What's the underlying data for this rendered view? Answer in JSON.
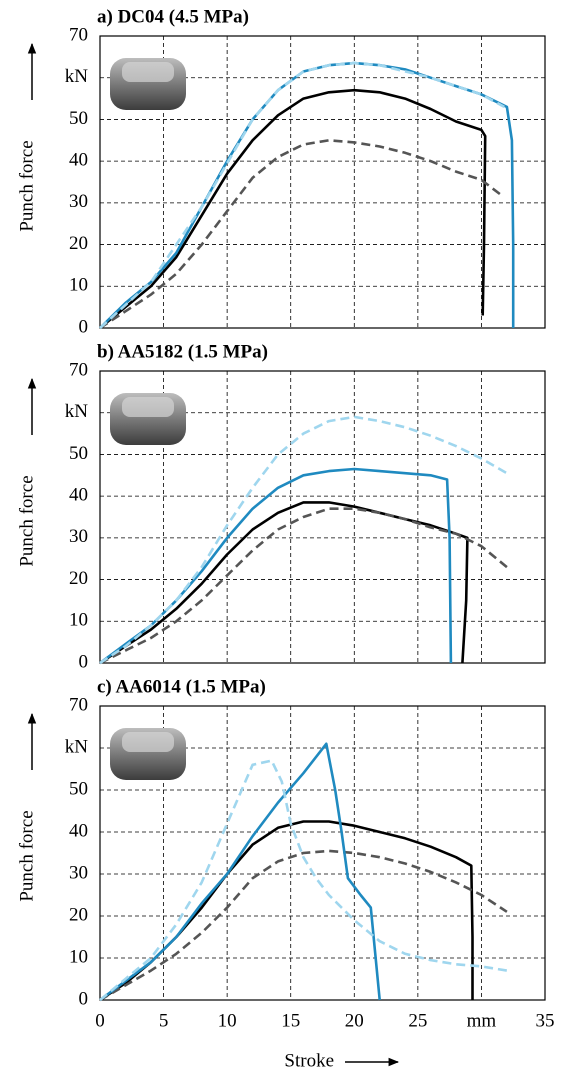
{
  "chart_data": [
    {
      "type": "line",
      "title": "a) DC04 (4.5 MPa)",
      "ylabel": "Punch force",
      "xlim": [
        0,
        35
      ],
      "xticks": [
        0,
        5,
        10,
        15,
        20,
        25,
        30,
        35
      ],
      "show_xtick_labels": false,
      "ylim": [
        0,
        70
      ],
      "yticks": [
        0,
        10,
        20,
        30,
        40,
        {
          "value": 60,
          "label": "kN"
        },
        50,
        70
      ],
      "grid": true,
      "series": [
        {
          "color": "#000000",
          "dash": false,
          "x": [
            0,
            2,
            4,
            6,
            8,
            10,
            12,
            14,
            16,
            18,
            20,
            22,
            24,
            26,
            28,
            30,
            30.3,
            30.2,
            30.1
          ],
          "values": [
            0,
            5,
            10,
            17,
            27,
            37,
            45,
            51,
            55,
            56.5,
            57,
            56.5,
            55,
            52.5,
            49.5,
            47.5,
            46,
            20,
            3
          ]
        },
        {
          "color": "#555555",
          "dash": true,
          "x": [
            0,
            4,
            6,
            8,
            10,
            12,
            14,
            16,
            18,
            20,
            22,
            24,
            26,
            28,
            30,
            31.5
          ],
          "values": [
            0,
            8,
            13,
            20,
            28,
            36,
            41,
            44,
            45,
            44.5,
            43.5,
            42,
            40,
            37.5,
            35.5,
            32
          ]
        },
        {
          "color": "#1f8ac0",
          "dash": false,
          "x": [
            0,
            2,
            4,
            6,
            8,
            10,
            12,
            14,
            16,
            18,
            20,
            22,
            24,
            26,
            28,
            30,
            32,
            32.4,
            32.5,
            32.5
          ],
          "values": [
            0,
            6,
            11,
            18,
            29,
            40,
            50,
            57,
            61.5,
            63,
            63.5,
            63,
            62,
            60,
            58,
            56,
            53,
            45,
            20,
            0
          ]
        },
        {
          "color": "#9fd6ee",
          "dash": true,
          "x": [
            0,
            4,
            8,
            12,
            14,
            16,
            18,
            20,
            22,
            26,
            30,
            31.8
          ],
          "values": [
            0,
            11,
            29,
            50,
            57,
            61.5,
            63,
            63.5,
            63,
            60,
            56,
            53
          ]
        }
      ]
    },
    {
      "type": "line",
      "title": "b) AA5182 (1.5 MPa)",
      "ylabel": "Punch force",
      "xlim": [
        0,
        35
      ],
      "xticks": [
        0,
        5,
        10,
        15,
        20,
        25,
        30,
        35
      ],
      "show_xtick_labels": false,
      "ylim": [
        0,
        70
      ],
      "yticks": [
        0,
        10,
        20,
        30,
        40,
        50,
        {
          "value": 60,
          "label": "kN"
        },
        70
      ],
      "grid": true,
      "series": [
        {
          "color": "#000000",
          "dash": false,
          "x": [
            0,
            2,
            4,
            6,
            8,
            10,
            12,
            14,
            16,
            18,
            20,
            22,
            24,
            26,
            28,
            28.9,
            28.8,
            28.5
          ],
          "values": [
            0,
            4,
            8,
            13,
            19,
            26,
            32,
            36,
            38.5,
            38.5,
            37.5,
            36,
            34.5,
            33,
            31,
            30,
            15,
            0
          ]
        },
        {
          "color": "#555555",
          "dash": true,
          "x": [
            0,
            4,
            6,
            8,
            10,
            12,
            14,
            16,
            18,
            20,
            22,
            24,
            26,
            28,
            30,
            32
          ],
          "values": [
            0,
            6,
            10,
            15,
            21,
            27,
            32,
            35,
            37,
            37,
            36,
            34.5,
            32.5,
            31,
            28,
            23
          ]
        },
        {
          "color": "#1f8ac0",
          "dash": false,
          "x": [
            0,
            2,
            4,
            6,
            8,
            10,
            12,
            14,
            16,
            18,
            20,
            22,
            24,
            26,
            27.3,
            27.5,
            27.6
          ],
          "values": [
            0,
            4.5,
            9,
            15,
            22,
            30,
            37,
            42,
            45,
            46,
            46.5,
            46,
            45.5,
            45,
            44,
            30,
            0
          ]
        },
        {
          "color": "#9fd6ee",
          "dash": true,
          "x": [
            0,
            2,
            4,
            6,
            8,
            10,
            12,
            14,
            16,
            18,
            20,
            22,
            24,
            26,
            28,
            30,
            32
          ],
          "values": [
            0,
            4,
            9,
            15,
            23,
            33,
            42,
            50,
            55,
            58,
            59,
            58,
            56.5,
            54.5,
            52,
            49,
            45.5
          ]
        }
      ]
    },
    {
      "type": "line",
      "title": "c) AA6014 (1.5 MPa)",
      "ylabel": "Punch force",
      "xlabel": "Stroke",
      "xlim": [
        0,
        35
      ],
      "xticks": [
        0,
        5,
        10,
        15,
        20,
        25,
        {
          "value": 30,
          "label": "mm"
        },
        35
      ],
      "show_xtick_labels": true,
      "ylim": [
        0,
        70
      ],
      "yticks": [
        0,
        10,
        20,
        30,
        40,
        50,
        {
          "value": 60,
          "label": "kN"
        },
        70
      ],
      "grid": true,
      "series": [
        {
          "color": "#000000",
          "dash": false,
          "x": [
            0,
            2,
            4,
            6,
            8,
            10,
            12,
            14,
            16,
            18,
            20,
            22,
            24,
            26,
            28,
            29.2,
            29.3,
            29.3
          ],
          "values": [
            0,
            4,
            9,
            15,
            22,
            30,
            37,
            41,
            42.5,
            42.5,
            41.5,
            40,
            38.5,
            36.5,
            34,
            32,
            15,
            0
          ]
        },
        {
          "color": "#555555",
          "dash": true,
          "x": [
            0,
            4,
            6,
            8,
            10,
            12,
            14,
            16,
            18,
            20,
            22,
            24,
            26,
            28,
            30,
            32
          ],
          "values": [
            0,
            7,
            11,
            16,
            22,
            29,
            33,
            35,
            35.5,
            35,
            34,
            32.5,
            30.5,
            28,
            25,
            21
          ]
        },
        {
          "color": "#1f8ac0",
          "dash": false,
          "x": [
            0,
            2,
            4,
            6,
            8,
            10,
            12,
            14,
            16,
            17.8,
            18.5,
            19,
            19.5,
            20.5,
            21.3,
            22
          ],
          "values": [
            0,
            4.5,
            9,
            15,
            23,
            30,
            39,
            47,
            54,
            61,
            50,
            40,
            29,
            25,
            22,
            0
          ]
        },
        {
          "color": "#9fd6ee",
          "dash": true,
          "x": [
            0,
            2,
            4,
            6,
            8,
            10,
            12,
            13.5,
            14.3,
            15,
            16,
            17,
            18,
            20,
            22,
            24,
            26,
            28,
            30,
            32
          ],
          "values": [
            0,
            5,
            10,
            18,
            28,
            42,
            56,
            57,
            52,
            42,
            34,
            29,
            25,
            19,
            14,
            11,
            9.5,
            8.5,
            8,
            7
          ]
        }
      ]
    }
  ]
}
